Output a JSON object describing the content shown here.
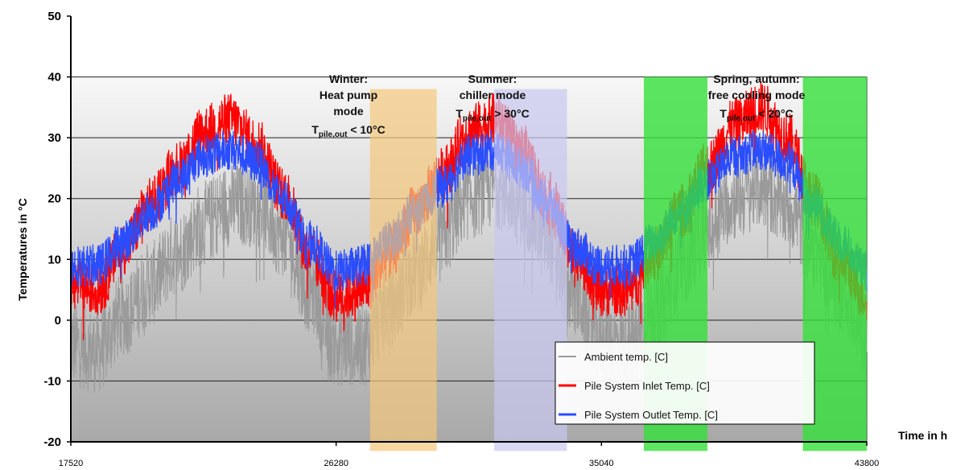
{
  "chart_data": {
    "type": "line",
    "xlabel": "Time in h",
    "ylabel": "Temperatures in °C",
    "xlim": [
      17520,
      43800
    ],
    "ylim": [
      -20,
      50
    ],
    "x_ticks": [
      17520,
      26280,
      35040,
      43800
    ],
    "y_ticks": [
      -20,
      -10,
      0,
      10,
      20,
      30,
      40,
      50
    ],
    "grid": true,
    "legend_position": "bottom-right",
    "series": [
      {
        "name": "Ambient temp. [C]",
        "color": "#9a9a9a",
        "x": [
          17520,
          18400,
          19270,
          20150,
          21020,
          21900,
          22780,
          23650,
          24530,
          25400,
          26280,
          27160,
          28030,
          28910,
          29780,
          30660,
          31540,
          32410,
          33290,
          34160,
          35040,
          35920,
          36790,
          37670,
          38540,
          39420,
          40300,
          41170,
          42050,
          42920,
          43800
        ],
        "y": [
          -4,
          -5,
          1,
          6,
          11,
          16,
          19,
          19,
          14,
          5,
          -4,
          -4,
          2,
          8,
          14,
          20,
          22,
          19,
          13,
          4,
          -3,
          -4,
          1,
          9,
          15,
          20,
          22,
          19,
          12,
          5,
          -2
        ]
      },
      {
        "name": "Pile System Inlet Temp. [C]",
        "color": "#ff0000",
        "x": [
          17520,
          18400,
          19270,
          20150,
          21020,
          21900,
          22780,
          23650,
          24530,
          25400,
          26280,
          27160,
          28030,
          28910,
          29780,
          30660,
          31540,
          32410,
          33290,
          34160,
          35040,
          35920,
          36790,
          37670,
          38540,
          39420,
          40300,
          41170,
          42050,
          42920,
          43800
        ],
        "y": [
          6,
          5,
          12,
          19,
          25,
          31,
          33,
          29,
          21,
          11,
          4,
          5,
          11,
          18,
          24,
          31,
          33,
          28,
          20,
          11,
          5,
          5,
          11,
          18,
          25,
          32,
          35,
          30,
          20,
          10,
          4
        ]
      },
      {
        "name": "Pile System Outlet Temp. [C]",
        "color": "#2a4dff",
        "x": [
          17520,
          18400,
          19270,
          20150,
          21020,
          21900,
          22780,
          23650,
          24530,
          25400,
          26280,
          27160,
          28030,
          28910,
          29780,
          30660,
          31540,
          32410,
          33290,
          34160,
          35040,
          35920,
          36790,
          37670,
          38540,
          39420,
          40300,
          41170,
          42050,
          42920,
          43800
        ],
        "y": [
          9,
          9,
          13,
          18,
          23,
          27,
          28,
          26,
          20,
          13,
          8,
          9,
          13,
          18,
          22,
          27,
          28,
          25,
          19,
          12,
          9,
          9,
          13,
          18,
          23,
          27,
          28,
          26,
          19,
          13,
          8
        ]
      }
    ],
    "annotations": [
      {
        "lines": [
          "Winter:",
          "Heat pump",
          "mode"
        ],
        "condition_main": "T",
        "condition_sub": "pile,out",
        "condition_rest": " < 10°C",
        "x_range": [
          27400,
          29600
        ],
        "color": "#f3c77a"
      },
      {
        "lines": [
          "Summer:",
          "chiller mode"
        ],
        "condition_main": "T",
        "condition_sub": "pile,out",
        "condition_rest": " > 30°C",
        "x_range": [
          31500,
          33900
        ],
        "color": "#c7c7f0"
      },
      {
        "lines": [
          "Spring, autumn:",
          "free cooling mode"
        ],
        "condition_main": "T",
        "condition_sub": "pile,out",
        "condition_rest": " < 20°C",
        "x_range": [
          [
            36440,
            38540
          ],
          [
            41690,
            43800
          ]
        ],
        "color": "#35e03a"
      }
    ]
  }
}
